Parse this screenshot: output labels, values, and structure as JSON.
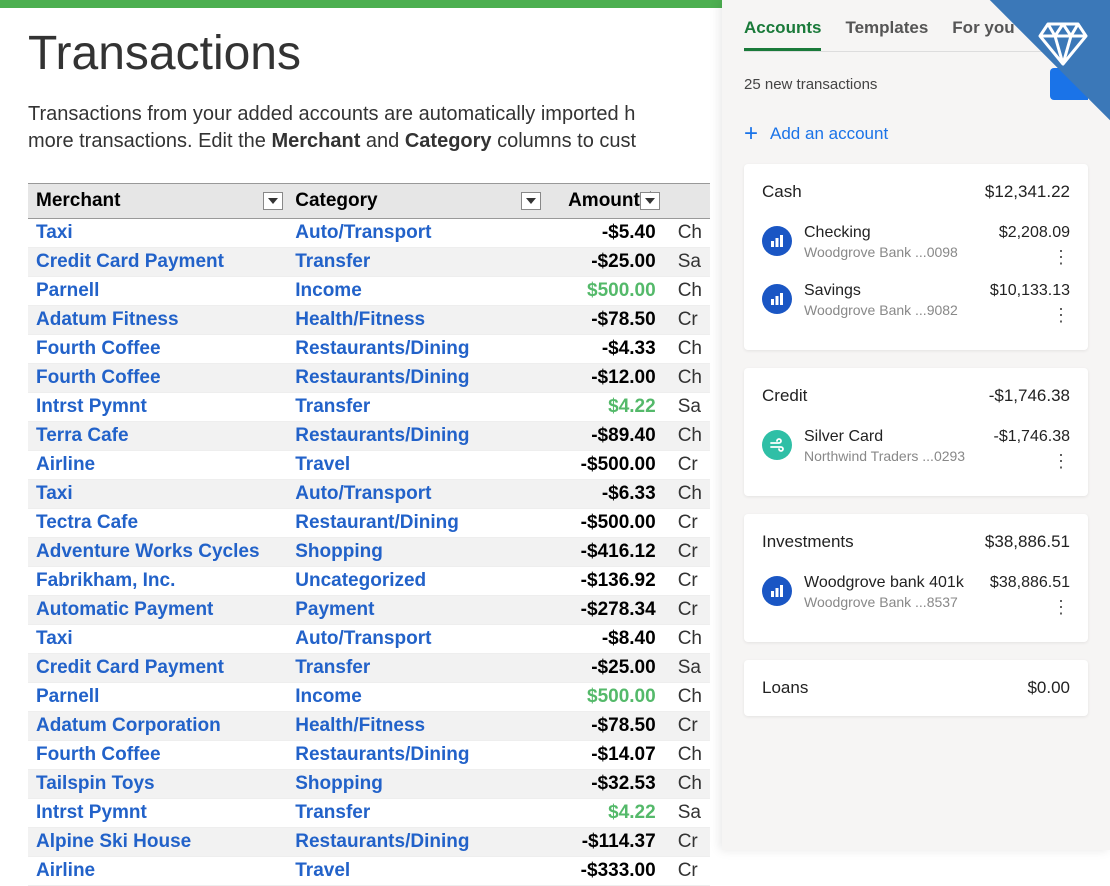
{
  "colors": {
    "top_bar": "#4caf50",
    "link_blue": "#2262c9",
    "positive_green": "#54b96a",
    "panel_bg": "#f6f5f4",
    "tab_active": "#1a7a3a",
    "action_blue": "#1a73e8",
    "icon_blue": "#1a56c4",
    "icon_teal": "#2fbfa6",
    "banner_blue": "#3b78b8"
  },
  "header": {
    "title": "Transactions",
    "description_before": "Transactions from your added accounts are automatically imported h",
    "description_line2_before": "more transactions. Edit the ",
    "bold1": "Merchant",
    "mid": " and ",
    "bold2": "Category",
    "after": " columns to cust"
  },
  "table": {
    "columns": {
      "merchant": "Merchant",
      "category": "Category",
      "amount": "Amount $"
    },
    "rows": [
      {
        "merchant": "Taxi",
        "category": "Auto/Transport",
        "amount": "-$5.40",
        "positive": false,
        "extra": "Ch"
      },
      {
        "merchant": "Credit Card Payment",
        "category": "Transfer",
        "amount": "-$25.00",
        "positive": false,
        "extra": "Sa"
      },
      {
        "merchant": "Parnell",
        "category": "Income",
        "amount": "$500.00",
        "positive": true,
        "extra": "Ch"
      },
      {
        "merchant": "Adatum Fitness",
        "category": "Health/Fitness",
        "amount": "-$78.50",
        "positive": false,
        "extra": "Cr"
      },
      {
        "merchant": "Fourth Coffee",
        "category": "Restaurants/Dining",
        "amount": "-$4.33",
        "positive": false,
        "extra": "Ch"
      },
      {
        "merchant": "Fourth Coffee",
        "category": "Restaurants/Dining",
        "amount": "-$12.00",
        "positive": false,
        "extra": "Ch"
      },
      {
        "merchant": "Intrst Pymnt",
        "category": "Transfer",
        "amount": "$4.22",
        "positive": true,
        "extra": "Sa"
      },
      {
        "merchant": "Terra Cafe",
        "category": "Restaurants/Dining",
        "amount": "-$89.40",
        "positive": false,
        "extra": "Ch"
      },
      {
        "merchant": "Airline",
        "category": "Travel",
        "amount": "-$500.00",
        "positive": false,
        "extra": "Cr"
      },
      {
        "merchant": "Taxi",
        "category": "Auto/Transport",
        "amount": "-$6.33",
        "positive": false,
        "extra": "Ch"
      },
      {
        "merchant": "Tectra Cafe",
        "category": "Restaurant/Dining",
        "amount": "-$500.00",
        "positive": false,
        "extra": "Cr"
      },
      {
        "merchant": "Adventure Works Cycles",
        "category": "Shopping",
        "amount": "-$416.12",
        "positive": false,
        "extra": "Cr"
      },
      {
        "merchant": "Fabrikham, Inc.",
        "category": "Uncategorized",
        "amount": "-$136.92",
        "positive": false,
        "extra": "Cr"
      },
      {
        "merchant": "Automatic Payment",
        "category": "Payment",
        "amount": "-$278.34",
        "positive": false,
        "extra": "Cr"
      },
      {
        "merchant": "Taxi",
        "category": "Auto/Transport",
        "amount": "-$8.40",
        "positive": false,
        "extra": "Ch"
      },
      {
        "merchant": "Credit Card Payment",
        "category": "Transfer",
        "amount": "-$25.00",
        "positive": false,
        "extra": "Sa"
      },
      {
        "merchant": "Parnell",
        "category": "Income",
        "amount": "$500.00",
        "positive": true,
        "extra": "Ch"
      },
      {
        "merchant": "Adatum Corporation",
        "category": "Health/Fitness",
        "amount": "-$78.50",
        "positive": false,
        "extra": "Cr"
      },
      {
        "merchant": "Fourth Coffee",
        "category": "Restaurants/Dining",
        "amount": "-$14.07",
        "positive": false,
        "extra": "Ch"
      },
      {
        "merchant": "Tailspin Toys",
        "category": "Shopping",
        "amount": "-$32.53",
        "positive": false,
        "extra": "Ch"
      },
      {
        "merchant": "Intrst Pymnt",
        "category": "Transfer",
        "amount": "$4.22",
        "positive": true,
        "extra": "Sa"
      },
      {
        "merchant": "Alpine Ski House",
        "category": "Restaurants/Dining",
        "amount": "-$114.37",
        "positive": false,
        "extra": "Cr"
      },
      {
        "merchant": "Airline",
        "category": "Travel",
        "amount": "-$333.00",
        "positive": false,
        "extra": "Cr"
      }
    ]
  },
  "panel": {
    "tabs": [
      "Accounts",
      "Templates",
      "For you"
    ],
    "active_tab": 0,
    "status": "25 new transactions",
    "add_label": "Add an account",
    "groups": [
      {
        "name": "Cash",
        "total": "$12,341.22",
        "accounts": [
          {
            "name": "Checking",
            "bank": "Woodgrove Bank ...0098",
            "balance": "$2,208.09",
            "icon": "bars"
          },
          {
            "name": "Savings",
            "bank": "Woodgrove Bank ...9082",
            "balance": "$10,133.13",
            "icon": "bars"
          }
        ]
      },
      {
        "name": "Credit",
        "total": "-$1,746.38",
        "accounts": [
          {
            "name": "Silver Card",
            "bank": "Northwind Traders ...0293",
            "balance": "-$1,746.38",
            "icon": "wind"
          }
        ]
      },
      {
        "name": "Investments",
        "total": "$38,886.51",
        "accounts": [
          {
            "name": "Woodgrove bank 401k",
            "bank": "Woodgrove Bank ...8537",
            "balance": "$38,886.51",
            "icon": "bars"
          }
        ]
      },
      {
        "name": "Loans",
        "total": "$0.00",
        "accounts": []
      }
    ]
  }
}
